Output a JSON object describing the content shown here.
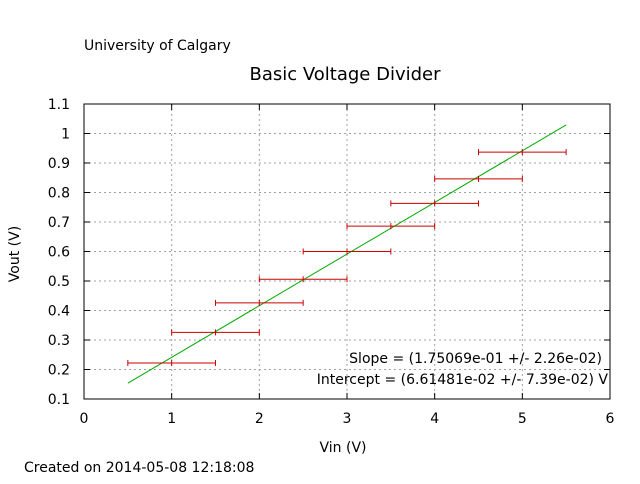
{
  "header": {
    "institution": "University of Calgary"
  },
  "footer": {
    "created": "Created on 2014-05-08 12:18:08"
  },
  "chart_data": {
    "type": "scatter",
    "title": "Basic Voltage Divider",
    "xlabel": "Vin (V)",
    "ylabel": "Vout (V)",
    "xlim": [
      0,
      6
    ],
    "ylim": [
      0.1,
      1.1
    ],
    "x_ticks": [
      "0",
      "1",
      "2",
      "3",
      "4",
      "5",
      "6"
    ],
    "y_ticks": [
      "0.1",
      "0.2",
      "0.3",
      "0.4",
      "0.5",
      "0.6",
      "0.7",
      "0.8",
      "0.9",
      "1",
      "1.1"
    ],
    "grid": true,
    "points": [
      {
        "x": 1.0,
        "y": 0.222,
        "xerr": 0.5
      },
      {
        "x": 1.5,
        "y": 0.326,
        "xerr": 0.5
      },
      {
        "x": 2.0,
        "y": 0.426,
        "xerr": 0.5
      },
      {
        "x": 2.5,
        "y": 0.506,
        "xerr": 0.5
      },
      {
        "x": 3.0,
        "y": 0.6,
        "xerr": 0.5
      },
      {
        "x": 3.5,
        "y": 0.686,
        "xerr": 0.5
      },
      {
        "x": 4.0,
        "y": 0.763,
        "xerr": 0.5
      },
      {
        "x": 4.5,
        "y": 0.846,
        "xerr": 0.5
      },
      {
        "x": 5.0,
        "y": 0.937,
        "xerr": 0.5
      }
    ],
    "fit": {
      "slope": 0.175069,
      "intercept": 0.0661481,
      "x_range": [
        0.5,
        5.5
      ]
    },
    "annotations": [
      "Slope = (1.75069e-01 +/- 2.26e-02)",
      "Intercept = (6.61481e-02 +/- 7.39e-02) V"
    ],
    "colors": {
      "points": "#cc0000",
      "fit": "#00aa00",
      "grid": "#a0a0a0",
      "axis": "#000000"
    }
  }
}
